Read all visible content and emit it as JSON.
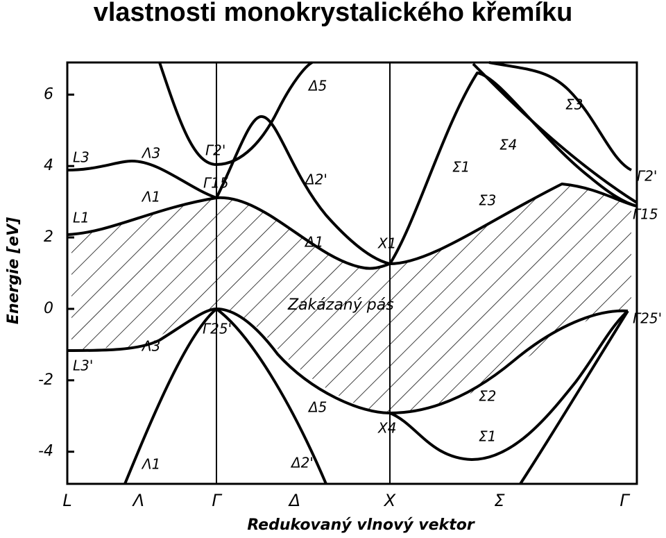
{
  "title": "vlastnosti monokrystalického křemíku",
  "axis": {
    "y_label": "Energie [eV]",
    "x_label": "Redukovaný vlnový vektor",
    "ylim": [
      -4.9,
      6.9
    ],
    "yticks": [
      -4,
      -2,
      0,
      2,
      4,
      6
    ],
    "x_points": [
      "L",
      "Λ",
      "Γ",
      "Δ",
      "X",
      "Σ",
      "Γ"
    ]
  },
  "labels": [
    "L3",
    "Λ3",
    "Γ2'",
    "Δ5",
    "Γ15",
    "Λ1",
    "Δ2'",
    "L1",
    "Δ1",
    "X1",
    "Σ1",
    "Σ4",
    "Σ3",
    "Γ2'",
    "Γ15",
    "Σ3",
    "Zakázaný pás",
    "Γ25'",
    "Λ3",
    "L3'",
    "Δ5",
    "X4",
    "Σ2",
    "Σ1",
    "Λ1",
    "Δ2'",
    "Γ25'"
  ]
}
